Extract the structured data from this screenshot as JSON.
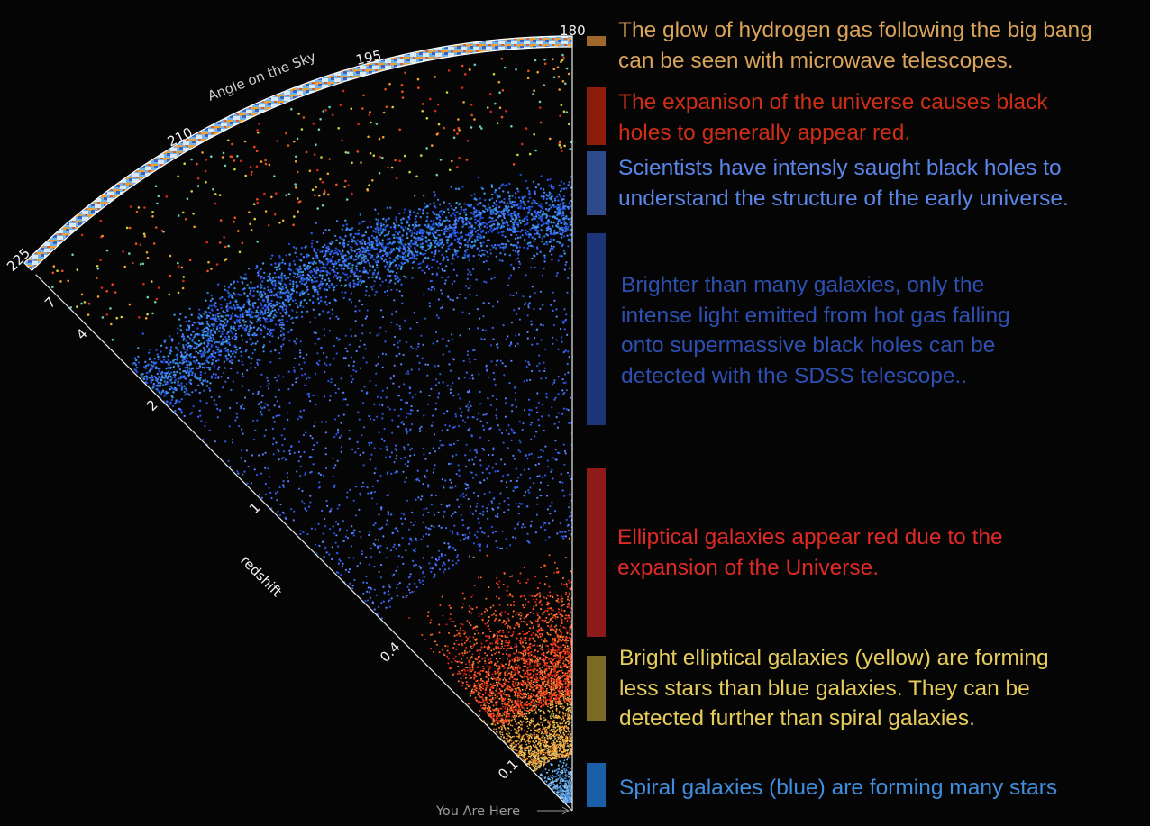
{
  "colors": {
    "background": "#050505",
    "cmb": "#a0672b",
    "quasar_red": "#8c1c0b",
    "quasar_blue": "#2f4a8a",
    "quasar_deep": "#1c3478",
    "elliptical": "#8f1a1a",
    "bright_elliptical": "#7a6a23",
    "spiral": "#1b5fa8"
  },
  "diagram": {
    "angle_axis_label": "Angle on the Sky",
    "angle_ticks": [
      "180",
      "195",
      "210",
      "225"
    ],
    "redshift_axis_label": "redshift",
    "redshift_ticks": [
      "0.1",
      "0.4",
      "1",
      "2",
      "4",
      "7"
    ],
    "you_are_here": "You Are Here"
  },
  "legend": [
    {
      "key": "cmb",
      "text": "The glow of hydrogen gas following the big bang can be seen with microwave telescopes.",
      "text_color": "#d9a35a",
      "bar_color": "#a0672b"
    },
    {
      "key": "quasar_red",
      "text": "The expanison of the universe causes black holes to generally appear red.",
      "text_color": "#cc2f15",
      "bar_color": "#8c1c0b"
    },
    {
      "key": "quasar_blue",
      "text": "Scientists have intensly saught black holes to understand the structure of the early universe.",
      "text_color": "#5a86ea",
      "bar_color": "#2f4a8a"
    },
    {
      "key": "quasar_deep",
      "text": "Brighter than many galaxies, only the intense light emitted from hot gas falling onto supermassive black holes can be detected with the SDSS telescope..",
      "text_color": "#2d4fb0",
      "bar_color": "#1c3478"
    },
    {
      "key": "elliptical",
      "text": "Elliptical galaxies appear red due to the expansion of the Universe.",
      "text_color": "#dd2a24",
      "bar_color": "#8f1a1a"
    },
    {
      "key": "bright_elliptical",
      "text": "Bright elliptical galaxies (yellow) are forming less stars than blue galaxies.  They can be detected further than spiral galaxies.",
      "text_color": "#e6cc5a",
      "bar_color": "#7a6a23"
    },
    {
      "key": "spiral",
      "text": "Spiral galaxies (blue) are forming many stars",
      "text_color": "#3f8ddc",
      "bar_color": "#1b5fa8"
    }
  ]
}
